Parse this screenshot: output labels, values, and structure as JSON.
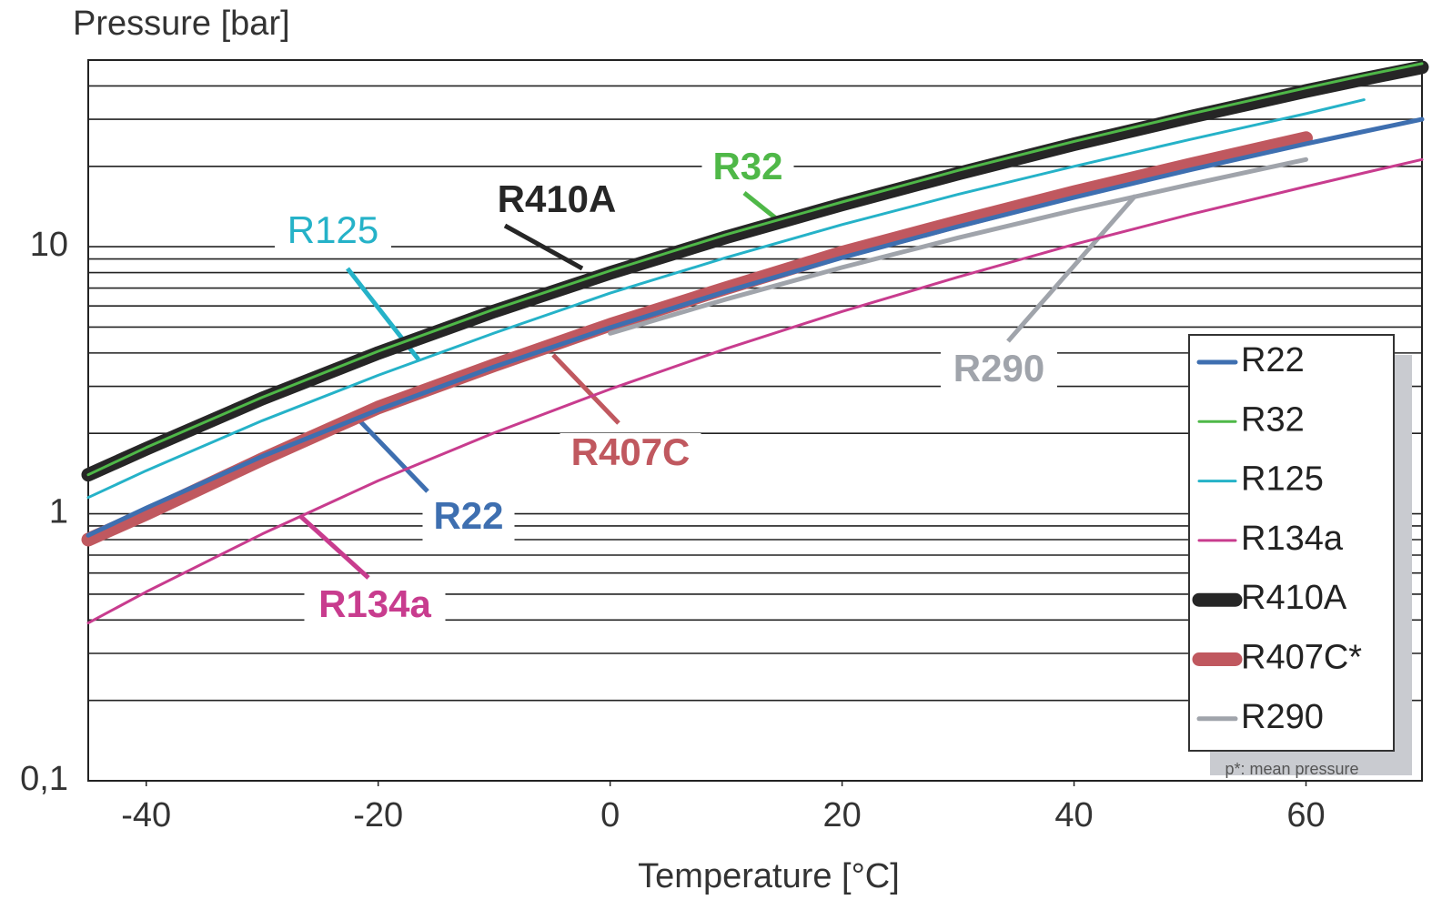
{
  "chart_data": {
    "type": "line",
    "title": "Pressure [bar]",
    "x_label": "Temperature [°C]",
    "x": [
      -45,
      -40,
      -30,
      -20,
      -10,
      0,
      10,
      20,
      30,
      40,
      50,
      60,
      65,
      70
    ],
    "series": [
      {
        "name": "R22",
        "color": "#3e6fb0",
        "width": 5,
        "values": [
          0.83,
          1.05,
          1.64,
          2.45,
          3.55,
          4.98,
          6.8,
          9.1,
          11.9,
          15.3,
          19.4,
          24.3,
          27,
          30
        ]
      },
      {
        "name": "R32",
        "color": "#4fb848",
        "width": 3,
        "values": [
          1.4,
          1.77,
          2.73,
          4.06,
          5.83,
          8.13,
          11.1,
          14.7,
          19.3,
          24.8,
          31.4,
          39.3,
          43.8,
          48.5
        ]
      },
      {
        "name": "R125",
        "color": "#25b2c8",
        "width": 3,
        "values": [
          1.15,
          1.45,
          2.23,
          3.3,
          4.75,
          6.7,
          9.1,
          12.1,
          15.7,
          20,
          25.2,
          31.5,
          35.5,
          null
        ]
      },
      {
        "name": "R134a",
        "color": "#c83c8e",
        "width": 3,
        "values": [
          0.39,
          0.51,
          0.84,
          1.33,
          2.01,
          2.93,
          4.15,
          5.72,
          7.7,
          10.2,
          13.2,
          16.8,
          18.9,
          21.2
        ]
      },
      {
        "name": "R410A",
        "color": "#262626",
        "width": 15,
        "values": [
          1.4,
          1.75,
          2.7,
          4.0,
          5.73,
          7.98,
          10.85,
          14.4,
          18.8,
          24.2,
          30.6,
          38.3,
          42.5,
          47
        ]
      },
      {
        "name": "R407C*",
        "color": "#c0585f",
        "width": 15,
        "values": [
          0.8,
          1.0,
          1.6,
          2.5,
          3.6,
          5.1,
          7.0,
          9.5,
          12.4,
          16,
          20.3,
          25.5,
          null,
          null
        ]
      },
      {
        "name": "R290",
        "color": "#a0a4ab",
        "width": 5,
        "values": [
          null,
          null,
          null,
          null,
          null,
          4.74,
          6.36,
          8.36,
          10.8,
          13.7,
          17.1,
          21.2,
          null,
          null
        ]
      }
    ],
    "xlim": [
      -45,
      70
    ],
    "xticks": [
      -40,
      -20,
      0,
      20,
      40,
      60
    ],
    "ylim": [
      0.1,
      50
    ],
    "yticks": [
      {
        "value": 0.1,
        "label": "0,1"
      },
      1,
      10
    ],
    "y_grid": [
      0.2,
      0.3,
      0.4,
      0.5,
      0.6,
      0.7,
      0.8,
      0.9,
      2,
      3,
      4,
      5,
      6,
      7,
      8,
      9,
      20,
      30,
      40
    ],
    "log_y": true,
    "grid": true,
    "legend": "right",
    "annotations": [
      "R410A",
      "R32",
      "R125",
      "R22",
      "R407C",
      "R134a",
      "R290"
    ],
    "note": "p*: mean pressure"
  }
}
